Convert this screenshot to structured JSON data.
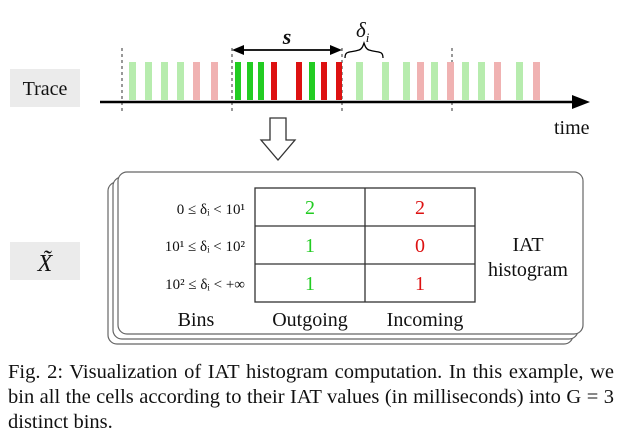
{
  "trace": {
    "label": "Trace",
    "time_label": "time",
    "burst_label": "s",
    "iat_label": "δ",
    "iat_sub": "i",
    "ticks": [
      {
        "color": "#b7ecae",
        "group": "light"
      },
      {
        "color": "#b7ecae",
        "group": "light"
      },
      {
        "color": "#b7ecae",
        "group": "light"
      },
      {
        "color": "#b7ecae",
        "group": "light"
      },
      {
        "color": "#f0b2b2",
        "group": "light"
      },
      {
        "color": "#f0b2b2",
        "group": "light"
      },
      {
        "color": "#22cc22",
        "group": "burst"
      },
      {
        "color": "#22cc22",
        "group": "burst"
      },
      {
        "color": "#22cc22",
        "group": "burst"
      },
      {
        "color": "#dd1111",
        "group": "burst"
      },
      {
        "color": "#dd1111",
        "group": "burst"
      },
      {
        "color": "#22cc22",
        "group": "burst"
      },
      {
        "color": "#dd1111",
        "group": "burst"
      },
      {
        "color": "#dd1111",
        "group": "burst"
      },
      {
        "color": "#b7ecae",
        "group": "light"
      },
      {
        "color": "#b7ecae",
        "group": "light"
      },
      {
        "color": "#b7ecae",
        "group": "light"
      },
      {
        "color": "#f0b2b2",
        "group": "light"
      },
      {
        "color": "#b7ecae",
        "group": "light"
      },
      {
        "color": "#f0b2b2",
        "group": "light"
      },
      {
        "color": "#b7ecae",
        "group": "light"
      },
      {
        "color": "#b7ecae",
        "group": "light"
      },
      {
        "color": "#f0b2b2",
        "group": "light"
      },
      {
        "color": "#b7ecae",
        "group": "light"
      },
      {
        "color": "#f0b2b2",
        "group": "light"
      }
    ]
  },
  "histogram": {
    "symbol_label": "X̃",
    "title_line1": "IAT",
    "title_line2": "histogram",
    "bins_label": "Bins",
    "outgoing_label": "Outgoing",
    "incoming_label": "Incoming",
    "outgoing_color": "#22cc22",
    "incoming_color": "#dd1111",
    "rows": [
      {
        "bin": "0 ≤ δᵢ < 10¹",
        "outgoing": "2",
        "incoming": "2"
      },
      {
        "bin": "10¹ ≤ δᵢ < 10²",
        "outgoing": "1",
        "incoming": "0"
      },
      {
        "bin": "10² ≤ δᵢ < +∞",
        "outgoing": "1",
        "incoming": "1"
      }
    ]
  },
  "caption": "Fig. 2: Visualization of IAT histogram computation. In this example, we bin all the cells according to their IAT values (in milliseconds) into G = 3 distinct bins."
}
